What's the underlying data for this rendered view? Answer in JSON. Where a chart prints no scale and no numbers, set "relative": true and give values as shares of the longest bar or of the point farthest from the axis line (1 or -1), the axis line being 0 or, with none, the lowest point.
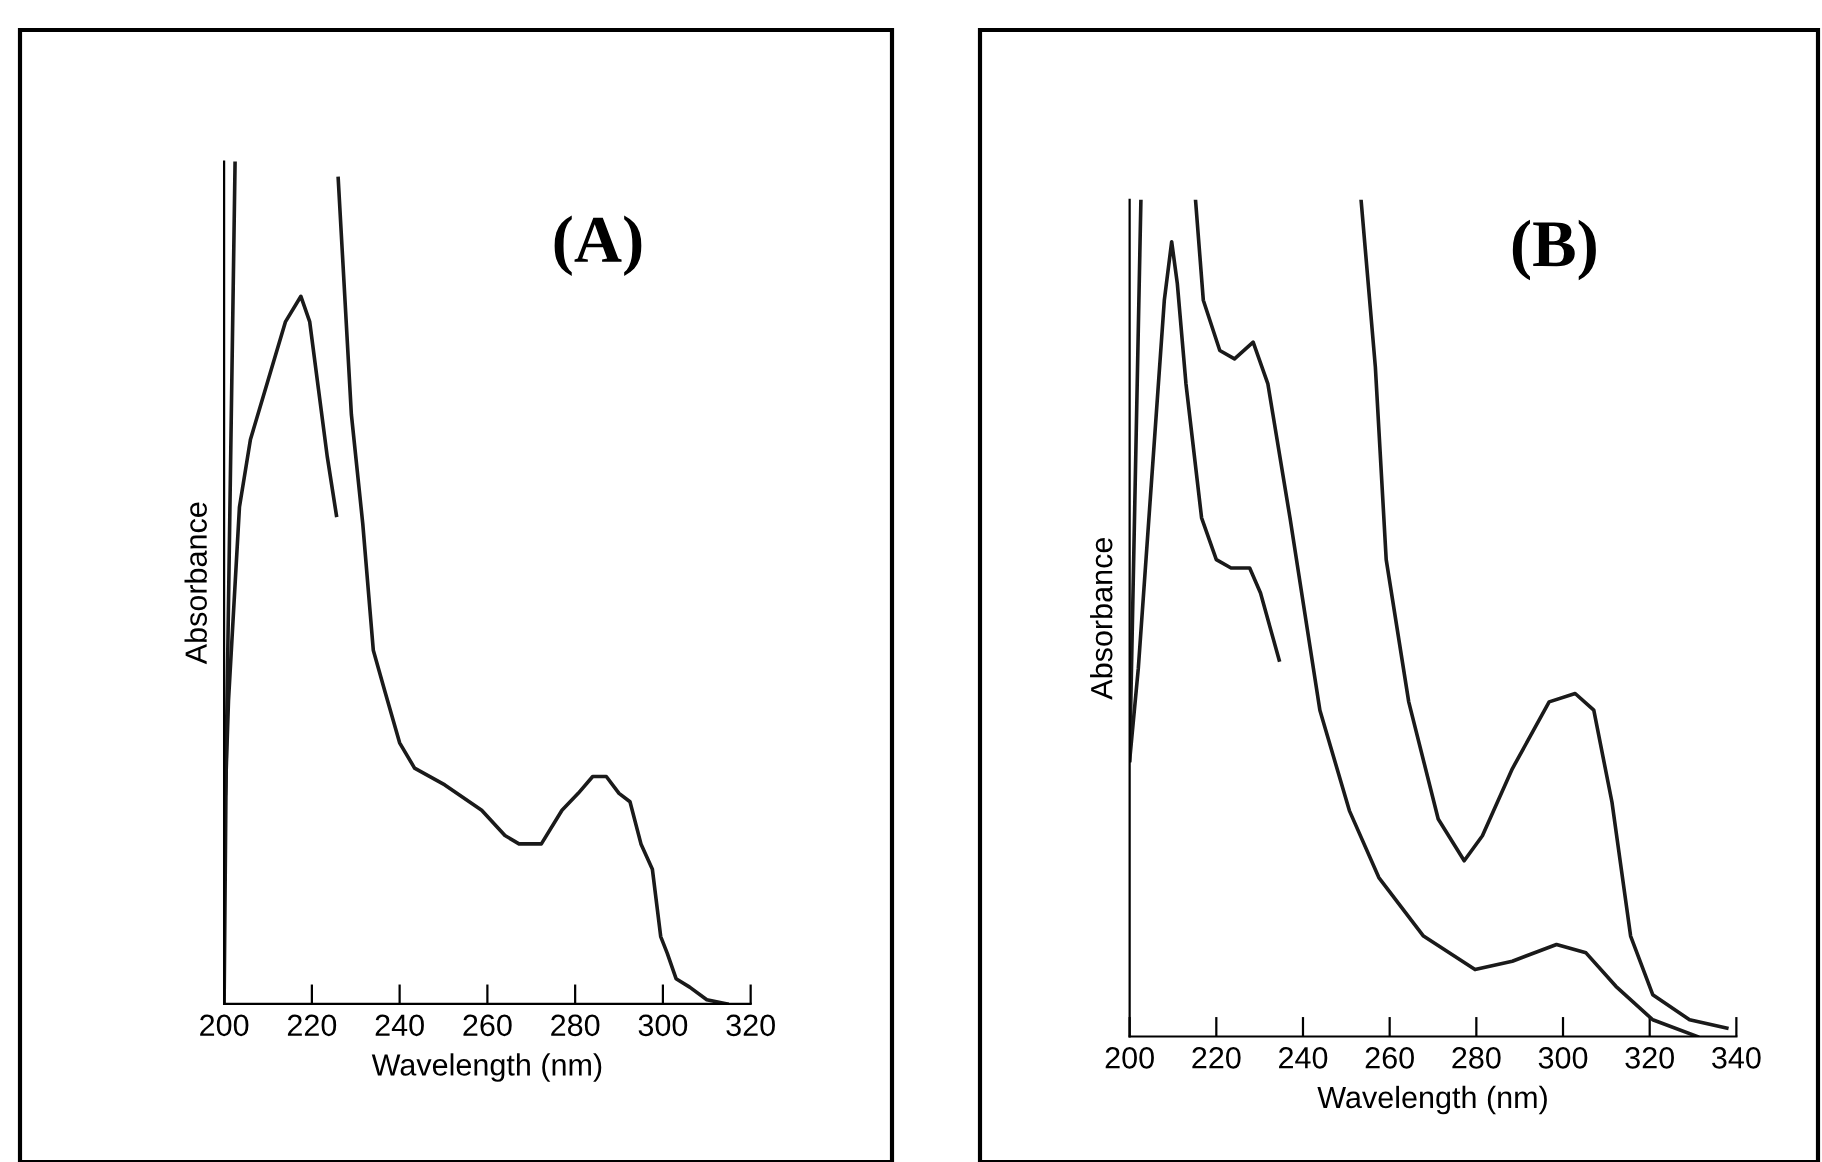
{
  "chart_data": [
    {
      "type": "line",
      "title": "(A)",
      "xlabel": "Wavelength (nm)",
      "ylabel": "Absorbance",
      "relative": true,
      "xlim": [
        200,
        320
      ],
      "xticks": [
        200,
        220,
        240,
        260,
        280,
        300,
        320
      ],
      "tick_labels": "x",
      "series": [
        {
          "color": "#1a1a1a",
          "x": [
            200.3,
            201,
            203.5,
            206,
            210,
            214,
            217.5,
            219.5,
            221.5,
            223.5,
            225.6
          ],
          "values": [
            0.25,
            0.36,
            0.59,
            0.67,
            0.74,
            0.81,
            0.84,
            0.81,
            0.73,
            0.65,
            0.58
          ]
        },
        {
          "color": "#1a1a1a",
          "x": [
            200,
            200.5,
            202.5,
            214,
            226,
            229,
            231.6,
            234,
            236.7,
            240,
            243.4,
            250.3,
            258.7,
            264,
            267.2,
            272.3,
            277,
            280.7,
            284,
            287.1,
            290,
            292.5,
            295,
            297.6,
            299.5,
            301,
            303,
            306.1,
            310,
            314.6
          ],
          "values": [
            0,
            0.3,
            1,
            null,
            0.98,
            0.7,
            0.57,
            0.42,
            0.37,
            0.31,
            0.28,
            0.26,
            0.23,
            0.2,
            0.19,
            0.19,
            0.23,
            0.25,
            0.27,
            0.27,
            0.25,
            0.24,
            0.19,
            0.16,
            0.08,
            0.06,
            0.03,
            0.02,
            0.005,
            0
          ]
        }
      ]
    },
    {
      "type": "line",
      "title": "(B)",
      "xlabel": "Wavelength (nm)",
      "ylabel": "Absorbance",
      "relative": true,
      "xlim": [
        200,
        340
      ],
      "xticks": [
        200,
        220,
        240,
        260,
        280,
        300,
        320,
        340
      ],
      "tick_labels": "x",
      "series": [
        {
          "color": "#1a1a1a",
          "x": [
            200,
            202,
            205,
            208,
            209.7,
            211,
            213,
            216.6,
            220,
            223.4,
            227.7,
            230.2,
            234.5
          ],
          "values": [
            0.33,
            0.44,
            0.66,
            0.88,
            0.95,
            0.9,
            0.78,
            0.62,
            0.57,
            0.56,
            0.56,
            0.53,
            0.45
          ]
        },
        {
          "color": "#1a1a1a",
          "x": [
            200,
            202.6,
            210,
            215.2,
            217,
            220.8,
            224.2,
            228.5,
            231.9,
            237,
            243.9,
            250.7,
            257.5,
            267.8,
            279.7,
            288.3,
            298.5,
            305.3,
            312.2,
            320.7,
            331
          ],
          "values": [
            0.33,
            1,
            null,
            1,
            0.88,
            0.82,
            0.81,
            0.83,
            0.78,
            0.62,
            0.39,
            0.27,
            0.19,
            0.12,
            0.08,
            0.09,
            0.11,
            0.1,
            0.06,
            0.02,
            0
          ]
        },
        {
          "color": "#1a1a1a",
          "x": [
            253.4,
            256.7,
            259.2,
            264.4,
            271.2,
            277.2,
            281.4,
            288.3,
            296.8,
            302.8,
            307.1,
            311.3,
            315.6,
            320.7,
            329.2,
            337.8
          ],
          "values": [
            1,
            0.8,
            0.57,
            0.4,
            0.26,
            0.21,
            0.24,
            0.32,
            0.4,
            0.41,
            0.39,
            0.28,
            0.12,
            0.05,
            0.02,
            0.01
          ]
        }
      ]
    }
  ]
}
